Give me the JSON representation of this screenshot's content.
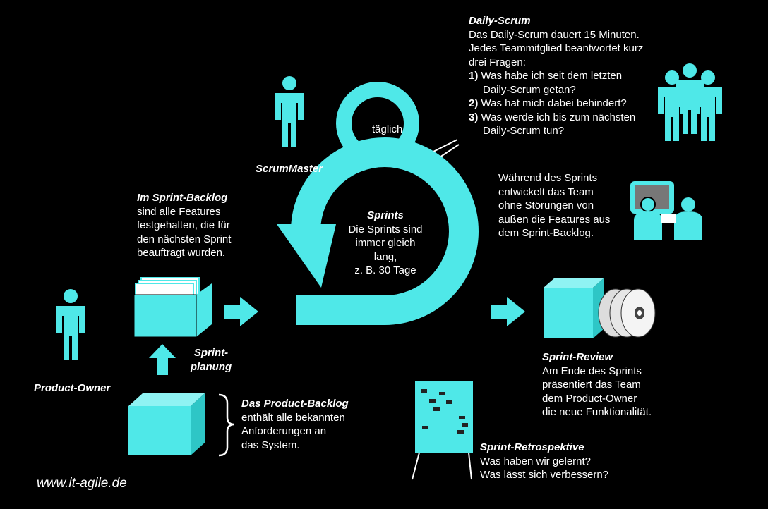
{
  "colors": {
    "accent": "#4fe8e8",
    "background": "#000000",
    "text": "#ffffff"
  },
  "daily_scrum": {
    "title": "Daily-Scrum",
    "line1": "Das Daily-Scrum dauert 15 Minuten.",
    "line2": "Jedes Teammitglied beantwortet kurz",
    "line3": "drei Fragen:",
    "questions": [
      {
        "num": "1)",
        "text": "Was habe ich seit dem letzten",
        "cont": "Daily-Scrum getan?"
      },
      {
        "num": "2)",
        "text": "Was hat mich dabei behindert?",
        "cont": ""
      },
      {
        "num": "3)",
        "text": "Was werde ich bis zum nächsten",
        "cont": "Daily-Scrum tun?"
      }
    ]
  },
  "daily_loop_label": "täglich",
  "scrum_master": {
    "label": "ScrumMaster"
  },
  "sprints": {
    "title": "Sprints",
    "lines": [
      "Die Sprints sind",
      "immer gleich",
      "lang,",
      "z. B. 30 Tage"
    ]
  },
  "team_work": {
    "lines": [
      "Während des Sprints",
      "entwickelt das Team",
      "ohne Störungen von",
      "außen die Features aus",
      "dem Sprint-Backlog."
    ]
  },
  "sprint_backlog": {
    "title": "Im Sprint-Backlog",
    "lines": [
      "sind alle Features",
      "festgehalten, die für",
      "den nächsten Sprint",
      "beauftragt wurden."
    ]
  },
  "sprint_planning": {
    "line1": "Sprint-",
    "line2": "planung"
  },
  "product_owner": {
    "label": "Product-Owner"
  },
  "product_backlog": {
    "title": "Das Product-Backlog",
    "lines": [
      "enthält alle bekannten",
      "Anforderungen an",
      "das System."
    ]
  },
  "sprint_review": {
    "title": "Sprint-Review",
    "lines": [
      "Am Ende des Sprints",
      "präsentiert das Team",
      "dem Product-Owner",
      "die neue Funktionalität."
    ]
  },
  "retrospective": {
    "title": "Sprint-Retrospektive",
    "lines": [
      "Was haben wir gelernt?",
      "Was lässt sich verbessern?"
    ]
  },
  "footer_url": "www.it-agile.de"
}
